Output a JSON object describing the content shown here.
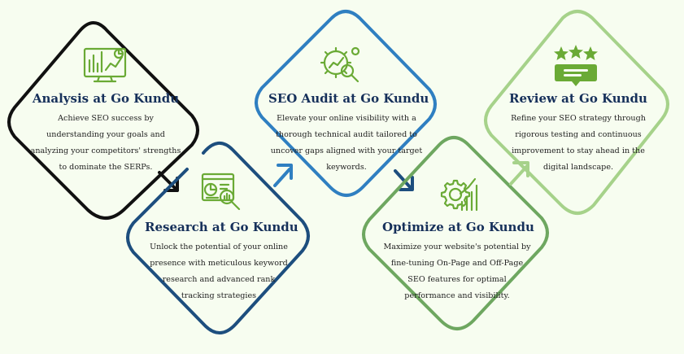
{
  "colors": {
    "analysis": "#111111",
    "research": "#1d4e7e",
    "audit": "#2f7fc1",
    "optimize": "#6ea760",
    "review": "#a6d28a",
    "icon_green": "#6aaa35",
    "title": "#16305a"
  },
  "steps": [
    {
      "id": "analysis",
      "title": "Analysis at Go Kundu",
      "body": "Achieve SEO success by understanding your goals and analyzing your competitors' strengths to dominate the SERPs.",
      "icon": "analytics-dashboard-icon"
    },
    {
      "id": "research",
      "title": "Research at Go Kundu",
      "body": "Unlock the potential of your online presence with meticulous keyword research and advanced rank tracking strategies",
      "icon": "report-magnifier-icon"
    },
    {
      "id": "audit",
      "title": "SEO Audit at Go Kundu",
      "body": "Elevate your online visibility with a thorough technical audit tailored to uncover gaps aligned with your target keywords.",
      "icon": "gear-chart-magnifier-icon"
    },
    {
      "id": "optimize",
      "title": "Optimize at Go Kundu",
      "body": "Maximize your website's potential by fine-tuning On-Page and Off-Page SEO features for optimal performance and visibility.",
      "icon": "gear-growth-chart-icon"
    },
    {
      "id": "review",
      "title": "Review at Go Kundu",
      "body": "Refine your SEO strategy through rigorous testing and continuous improvement to stay ahead in the digital landscape.",
      "icon": "star-rating-review-icon"
    }
  ]
}
